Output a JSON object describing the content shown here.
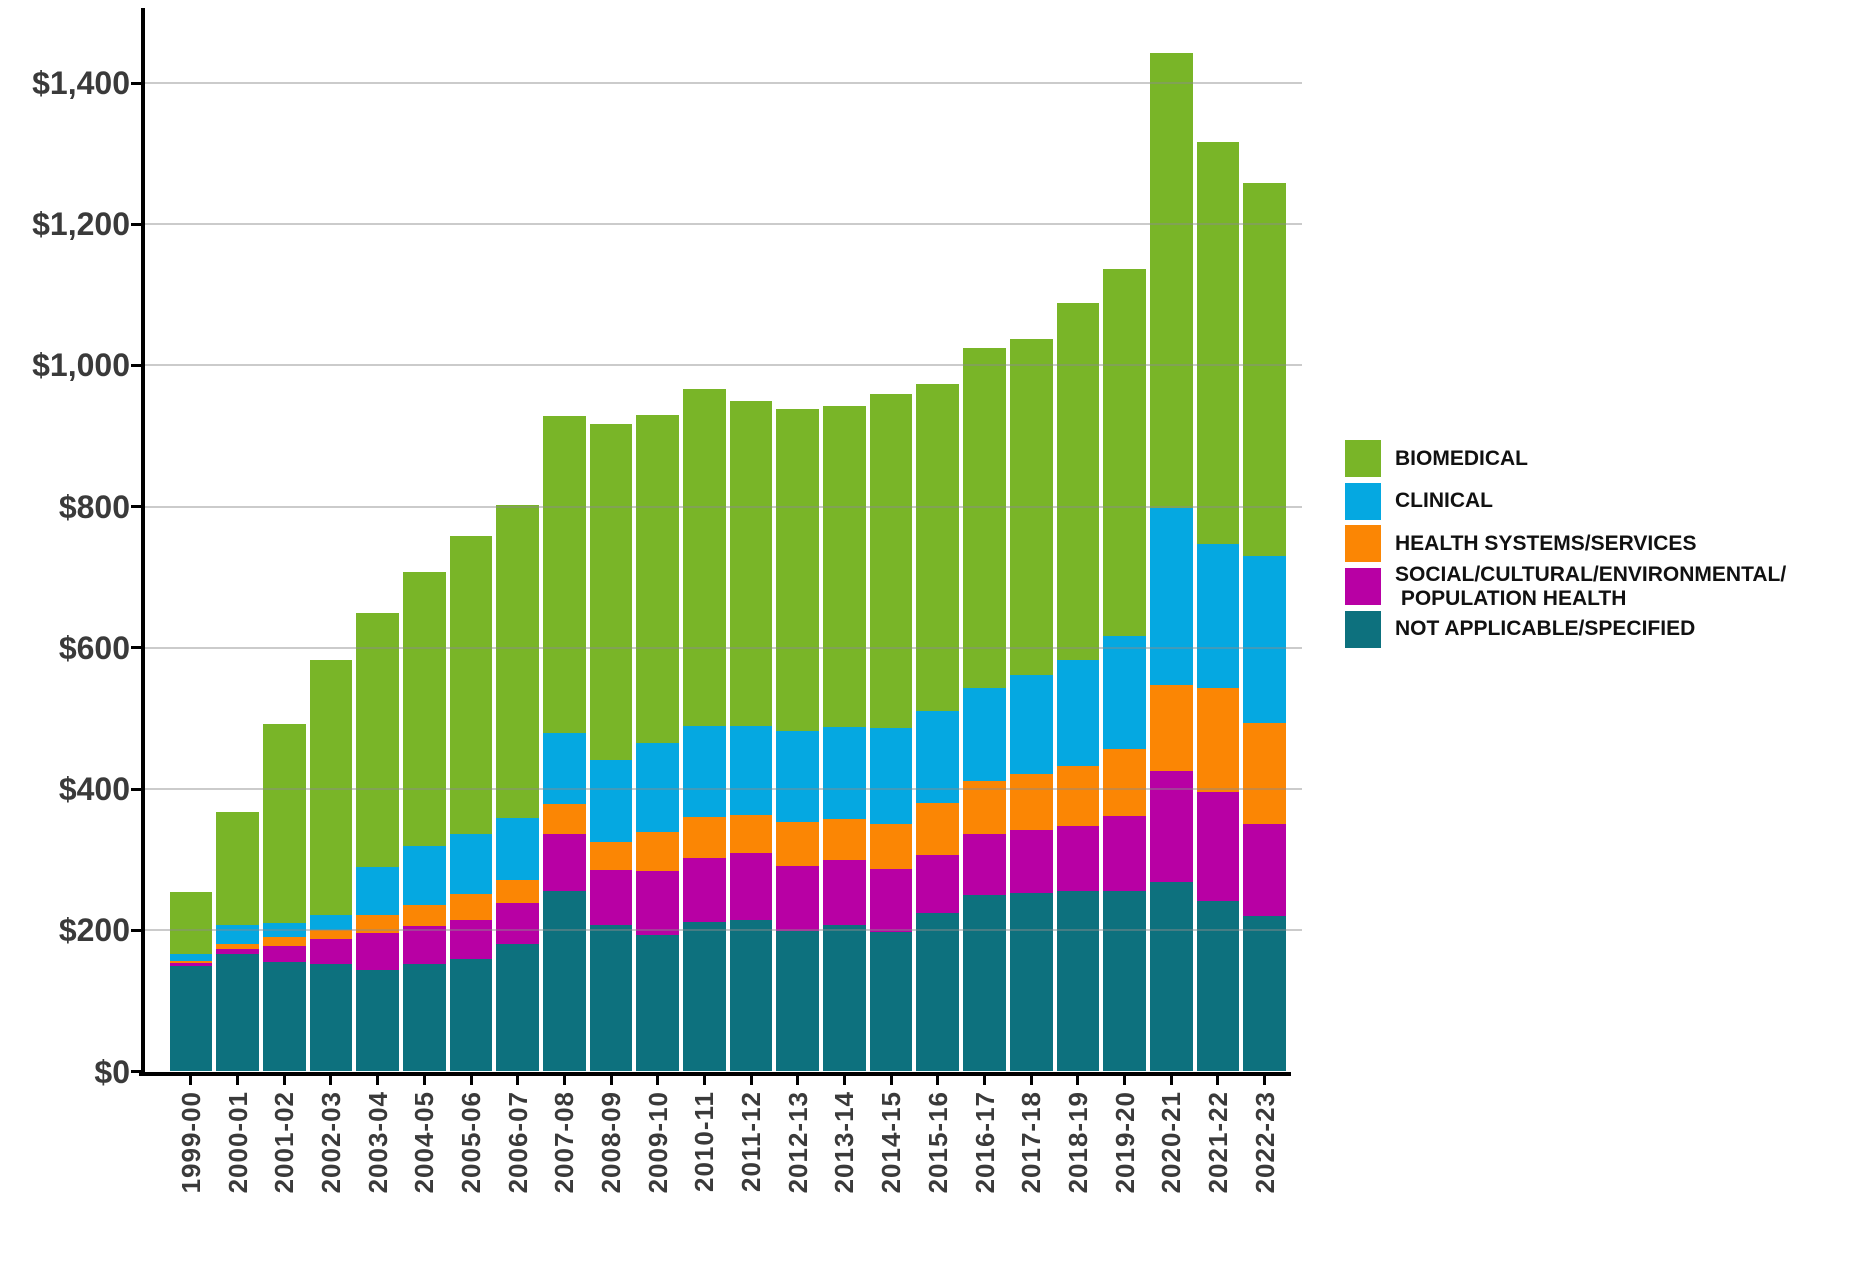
{
  "chart_data": {
    "type": "bar",
    "stacked": true,
    "title": "",
    "xlabel": "",
    "ylabel": "",
    "units": "dollars (millions)",
    "grid": "horizontal",
    "legend_position": "right",
    "ylim": [
      0,
      1500
    ],
    "y_ticks": [
      "$0",
      "$200",
      "$400",
      "$600",
      "$800",
      "$1,000",
      "$1,200",
      "$1,400"
    ],
    "y_tick_values": [
      0,
      200,
      400,
      600,
      800,
      1000,
      1200,
      1400
    ],
    "categories": [
      "1999-00",
      "2000-01",
      "2001-02",
      "2002-03",
      "2003-04",
      "2004-05",
      "2005-06",
      "2006-07",
      "2007-08",
      "2008-09",
      "2009-10",
      "2010-11",
      "2011-12",
      "2012-13",
      "2013-14",
      "2014-15",
      "2015-16",
      "2016-17",
      "2017-18",
      "2018-19",
      "2019-20",
      "2020-21",
      "2021-22",
      "2022-23"
    ],
    "series": [
      {
        "name": "NOT APPLICABLE/SPECIFIED",
        "color": "#0d717e",
        "values": [
          150,
          166,
          155,
          152,
          144,
          152,
          160,
          180,
          255,
          207,
          193,
          212,
          214,
          199,
          207,
          198,
          224,
          250,
          253,
          256,
          255,
          268,
          242,
          220
        ]
      },
      {
        "name": "SOCIAL/CULTURAL/ENVIRONMENTAL/POPULATION HEALTH",
        "color": "#b800a4",
        "values": [
          4,
          7,
          23,
          36,
          52,
          54,
          55,
          59,
          82,
          78,
          91,
          90,
          95,
          92,
          92,
          89,
          83,
          87,
          89,
          91,
          107,
          158,
          154,
          130
        ]
      },
      {
        "name": "HEALTH SYSTEMS/SERVICES",
        "color": "#fb8604",
        "values": [
          2,
          7,
          12,
          13,
          25,
          30,
          36,
          32,
          42,
          40,
          55,
          59,
          54,
          63,
          59,
          64,
          73,
          75,
          80,
          85,
          95,
          122,
          147,
          144
        ]
      },
      {
        "name": "CLINICAL",
        "color": "#05a8e1",
        "values": [
          11,
          27,
          21,
          20,
          69,
          84,
          86,
          88,
          101,
          116,
          126,
          129,
          127,
          128,
          130,
          135,
          130,
          131,
          139,
          151,
          160,
          250,
          204,
          236
        ]
      },
      {
        "name": "BIOMEDICAL",
        "color": "#79b528",
        "values": [
          87,
          160,
          281,
          362,
          360,
          387,
          422,
          443,
          449,
          476,
          465,
          477,
          460,
          457,
          455,
          474,
          464,
          482,
          476,
          506,
          520,
          644,
          570,
          529
        ]
      }
    ],
    "legend": [
      {
        "lines": [
          "BIOMEDICAL"
        ],
        "color": "#79b528"
      },
      {
        "lines": [
          "CLINICAL"
        ],
        "color": "#05a8e1"
      },
      {
        "lines": [
          "HEALTH SYSTEMS/SERVICES"
        ],
        "color": "#fb8604"
      },
      {
        "lines": [
          "SOCIAL/CULTURAL/ENVIRONMENTAL/",
          " POPULATION HEALTH"
        ],
        "color": "#b800a4"
      },
      {
        "lines": [
          "NOT APPLICABLE/SPECIFIED"
        ],
        "color": "#0d717e"
      }
    ]
  }
}
